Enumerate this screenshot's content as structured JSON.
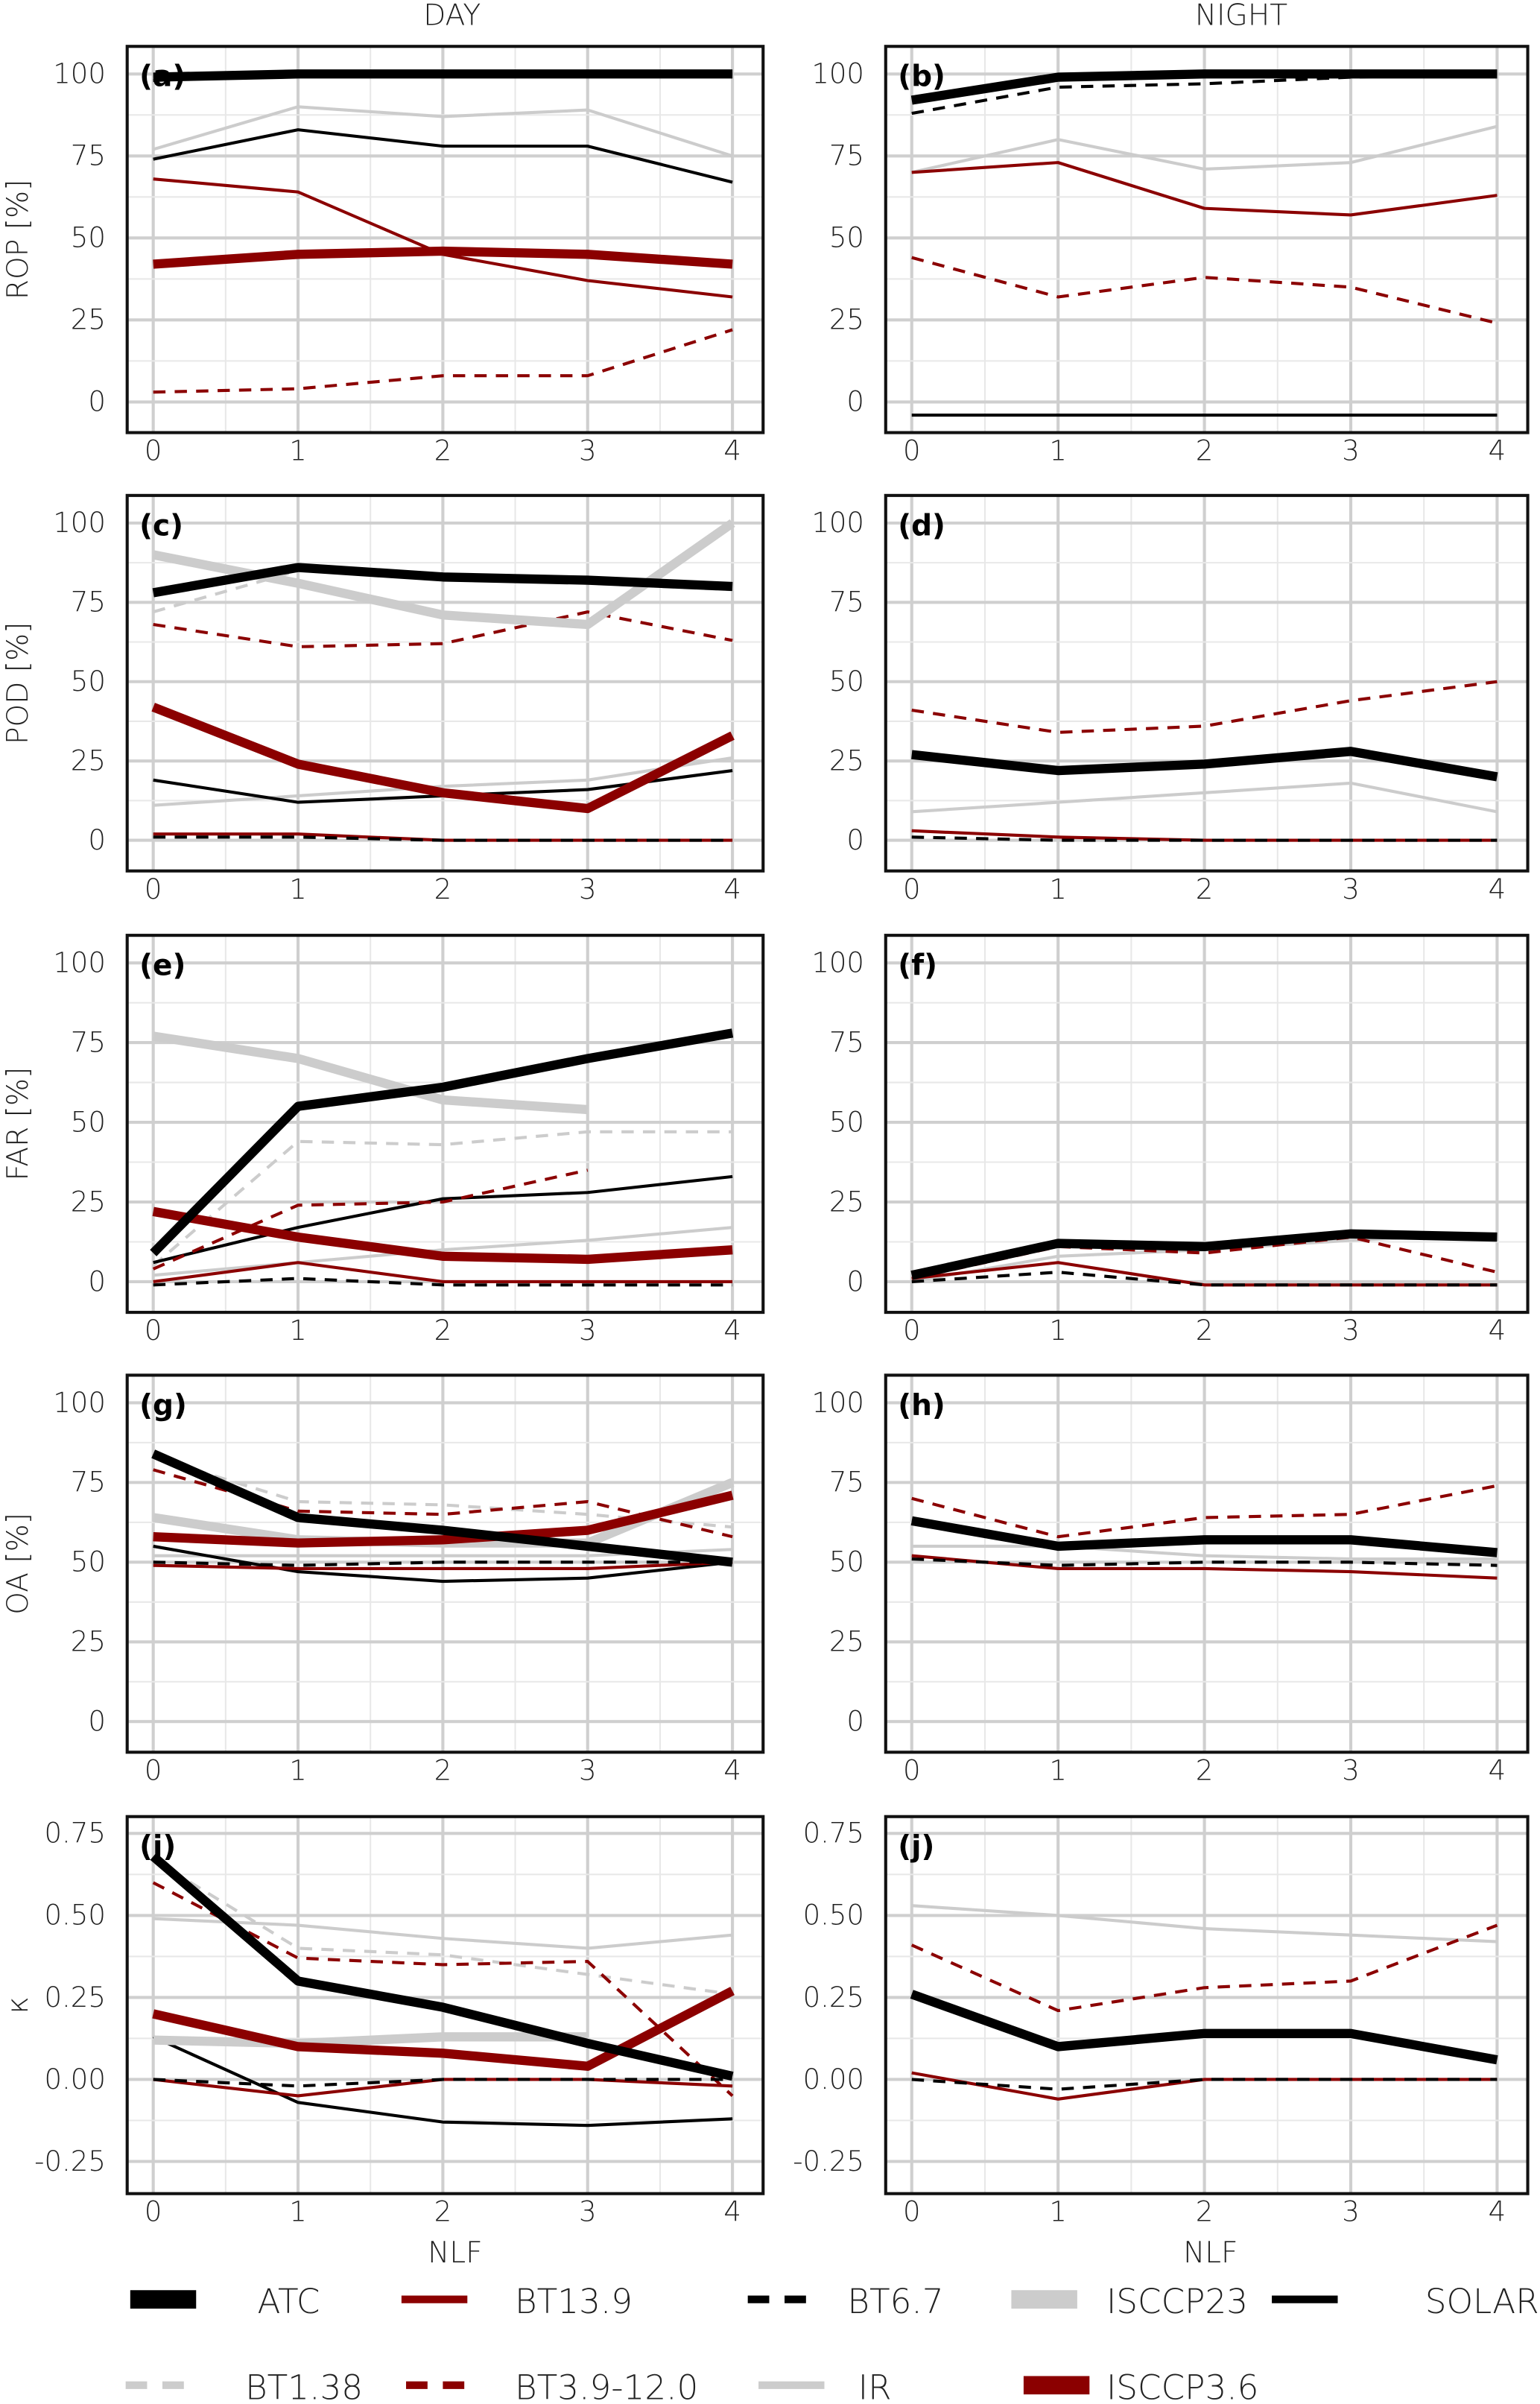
{
  "figure": {
    "column_titles": [
      "DAY",
      "NIGHT"
    ],
    "xlabel": "NLF"
  },
  "series_colors": {
    "ATC": "#000000",
    "BT13.9": "#8b0000",
    "BT6.7": "#000000",
    "ISCCP23": "#cccccc",
    "SOLAR": "#000000",
    "BT1.38": "#cccccc",
    "BT3.9-12.0": "#8b0000",
    "IR": "#cccccc",
    "ISCCP3.6": "#8b0000"
  },
  "legend": {
    "placement": "bottom",
    "entries": [
      "ATC",
      "BT13.9",
      "BT6.7",
      "ISCCP23",
      "SOLAR",
      "BT1.38",
      "BT3.9-12.0",
      "IR",
      "ISCCP3.6"
    ]
  },
  "chart_data": [
    {
      "type": "line",
      "label": "(a)",
      "column": "DAY",
      "ylabel": "ROP [%]",
      "x": [
        0,
        1,
        2,
        3,
        4
      ],
      "xticks": [
        "0",
        "1",
        "2",
        "3",
        "4"
      ],
      "ylim": [
        0,
        100
      ],
      "yticks": [
        "0",
        "25",
        "50",
        "75",
        "100"
      ],
      "grid": true,
      "series": [
        {
          "name": "IR",
          "values": [
            77,
            90,
            87,
            89,
            75
          ]
        },
        {
          "name": "SOLAR",
          "values": [
            74,
            83,
            78,
            78,
            67
          ]
        },
        {
          "name": "BT13.9",
          "values": [
            68,
            64,
            45,
            37,
            32
          ]
        },
        {
          "name": "BT3.9-12.0",
          "values": [
            3,
            4,
            8,
            8,
            22
          ]
        },
        {
          "name": "ISCCP3.6",
          "values": [
            42,
            45,
            46,
            45,
            42
          ]
        },
        {
          "name": "BT6.7",
          "values": [
            98,
            100,
            100,
            100,
            100
          ]
        },
        {
          "name": "ATC",
          "values": [
            99,
            100,
            100,
            100,
            100
          ]
        }
      ]
    },
    {
      "type": "line",
      "label": "(b)",
      "column": "NIGHT",
      "ylabel": "",
      "x": [
        0,
        1,
        2,
        3,
        4
      ],
      "xticks": [
        "0",
        "1",
        "2",
        "3",
        "4"
      ],
      "ylim": [
        0,
        100
      ],
      "yticks": [
        "0",
        "25",
        "50",
        "75",
        "100"
      ],
      "grid": true,
      "series": [
        {
          "name": "IR",
          "values": [
            70,
            80,
            71,
            73,
            84
          ]
        },
        {
          "name": "SOLAR",
          "values": [
            -4,
            -4,
            -4,
            -4,
            -4
          ]
        },
        {
          "name": "BT13.9",
          "values": [
            70,
            73,
            59,
            57,
            63
          ]
        },
        {
          "name": "BT3.9-12.0",
          "values": [
            44,
            32,
            38,
            35,
            24
          ]
        },
        {
          "name": "BT6.7",
          "values": [
            88,
            96,
            97,
            99,
            100
          ]
        },
        {
          "name": "ATC",
          "values": [
            92,
            99,
            100,
            100,
            100
          ]
        }
      ]
    },
    {
      "type": "line",
      "label": "(c)",
      "column": "DAY",
      "ylabel": "POD [%]",
      "x": [
        0,
        1,
        2,
        3,
        4
      ],
      "xticks": [
        "0",
        "1",
        "2",
        "3",
        "4"
      ],
      "ylim": [
        0,
        100
      ],
      "yticks": [
        "0",
        "25",
        "50",
        "75",
        "100"
      ],
      "grid": true,
      "series": [
        {
          "name": "IR",
          "values": [
            11,
            14,
            17,
            19,
            26
          ]
        },
        {
          "name": "BT1.38",
          "values": [
            72,
            85,
            83,
            81,
            79
          ]
        },
        {
          "name": "SOLAR",
          "values": [
            19,
            12,
            14,
            16,
            22
          ]
        },
        {
          "name": "BT3.9-12.0",
          "values": [
            68,
            61,
            62,
            72,
            63
          ]
        },
        {
          "name": "BT13.9",
          "values": [
            2,
            2,
            0,
            0,
            0
          ]
        },
        {
          "name": "BT6.7",
          "values": [
            1,
            1,
            0,
            0,
            0
          ]
        },
        {
          "name": "ISCCP23",
          "values": [
            90,
            81,
            71,
            68,
            100
          ]
        },
        {
          "name": "ISCCP3.6",
          "values": [
            42,
            24,
            15,
            10,
            33
          ]
        },
        {
          "name": "ATC",
          "values": [
            78,
            86,
            83,
            82,
            80
          ]
        }
      ]
    },
    {
      "type": "line",
      "label": "(d)",
      "column": "NIGHT",
      "ylabel": "",
      "x": [
        0,
        1,
        2,
        3,
        4
      ],
      "xticks": [
        "0",
        "1",
        "2",
        "3",
        "4"
      ],
      "ylim": [
        0,
        100
      ],
      "yticks": [
        "0",
        "25",
        "50",
        "75",
        "100"
      ],
      "grid": true,
      "series": [
        {
          "name": "IR",
          "values": [
            9,
            12,
            15,
            18,
            9
          ]
        },
        {
          "name": "BT3.9-12.0",
          "values": [
            41,
            34,
            36,
            44,
            50
          ]
        },
        {
          "name": "BT13.9",
          "values": [
            3,
            1,
            0,
            0,
            0
          ]
        },
        {
          "name": "BT6.7",
          "values": [
            1,
            0,
            0,
            0,
            0
          ]
        },
        {
          "name": "ATC",
          "values": [
            27,
            22,
            24,
            28,
            20
          ]
        }
      ]
    },
    {
      "type": "line",
      "label": "(e)",
      "column": "DAY",
      "ylabel": "FAR [%]",
      "x": [
        0,
        1,
        2,
        3,
        4
      ],
      "xticks": [
        "0",
        "1",
        "2",
        "3",
        "4"
      ],
      "ylim": [
        0,
        100
      ],
      "yticks": [
        "0",
        "25",
        "50",
        "75",
        "100"
      ],
      "grid": true,
      "series": [
        {
          "name": "IR",
          "values": [
            2,
            6,
            10,
            13,
            17
          ]
        },
        {
          "name": "BT1.38",
          "values": [
            5,
            44,
            43,
            47,
            47
          ]
        },
        {
          "name": "SOLAR",
          "values": [
            6,
            17,
            26,
            28,
            33
          ]
        },
        {
          "name": "BT3.9-12.0",
          "values": [
            4,
            24,
            25,
            35,
            null
          ]
        },
        {
          "name": "BT13.9",
          "values": [
            0,
            6,
            0,
            0,
            0
          ]
        },
        {
          "name": "BT6.7",
          "values": [
            -1,
            1,
            -1,
            -1,
            -1
          ]
        },
        {
          "name": "ISCCP23",
          "values": [
            77,
            70,
            57,
            54,
            null
          ]
        },
        {
          "name": "ISCCP3.6",
          "values": [
            22,
            14,
            8,
            7,
            10
          ]
        },
        {
          "name": "ATC",
          "values": [
            9,
            55,
            61,
            70,
            78
          ]
        }
      ]
    },
    {
      "type": "line",
      "label": "(f)",
      "column": "NIGHT",
      "ylabel": "",
      "x": [
        0,
        1,
        2,
        3,
        4
      ],
      "xticks": [
        "0",
        "1",
        "2",
        "3",
        "4"
      ],
      "ylim": [
        0,
        100
      ],
      "yticks": [
        "0",
        "25",
        "50",
        "75",
        "100"
      ],
      "grid": true,
      "series": [
        {
          "name": "IR",
          "values": [
            0,
            8,
            10,
            13,
            15
          ]
        },
        {
          "name": "BT3.9-12.0",
          "values": [
            1,
            11,
            9,
            14,
            3
          ]
        },
        {
          "name": "BT13.9",
          "values": [
            1,
            6,
            -1,
            -1,
            -1
          ]
        },
        {
          "name": "BT6.7",
          "values": [
            0,
            3,
            -1,
            -1,
            -1
          ]
        },
        {
          "name": "ATC",
          "values": [
            2,
            12,
            11,
            15,
            14
          ]
        }
      ]
    },
    {
      "type": "line",
      "label": "(g)",
      "column": "DAY",
      "ylabel": "OA [%]",
      "x": [
        0,
        1,
        2,
        3,
        4
      ],
      "xticks": [
        "0",
        "1",
        "2",
        "3",
        "4"
      ],
      "ylim": [
        0,
        100
      ],
      "yticks": [
        "0",
        "25",
        "50",
        "75",
        "100"
      ],
      "grid": true,
      "series": [
        {
          "name": "IR",
          "values": [
            52,
            52,
            52,
            52,
            54
          ]
        },
        {
          "name": "BT1.38",
          "values": [
            83,
            69,
            68,
            65,
            61
          ]
        },
        {
          "name": "SOLAR",
          "values": [
            55,
            47,
            44,
            45,
            50
          ]
        },
        {
          "name": "BT3.9-12.0",
          "values": [
            79,
            66,
            65,
            69,
            58
          ]
        },
        {
          "name": "BT13.9",
          "values": [
            49,
            48,
            48,
            48,
            50
          ]
        },
        {
          "name": "BT6.7",
          "values": [
            50,
            49,
            50,
            50,
            50
          ]
        },
        {
          "name": "ISCCP23",
          "values": [
            64,
            57,
            56,
            56,
            75
          ]
        },
        {
          "name": "ISCCP3.6",
          "values": [
            58,
            56,
            57,
            60,
            71
          ]
        },
        {
          "name": "ATC",
          "values": [
            84,
            64,
            60,
            55,
            50
          ]
        }
      ]
    },
    {
      "type": "line",
      "label": "(h)",
      "column": "NIGHT",
      "ylabel": "",
      "x": [
        0,
        1,
        2,
        3,
        4
      ],
      "xticks": [
        "0",
        "1",
        "2",
        "3",
        "4"
      ],
      "ylim": [
        0,
        100
      ],
      "yticks": [
        "0",
        "25",
        "50",
        "75",
        "100"
      ],
      "grid": true,
      "series": [
        {
          "name": "IR",
          "values": [
            55,
            55,
            52,
            51,
            51
          ]
        },
        {
          "name": "BT3.9-12.0",
          "values": [
            70,
            58,
            64,
            65,
            74
          ]
        },
        {
          "name": "BT13.9",
          "values": [
            52,
            48,
            48,
            47,
            45
          ]
        },
        {
          "name": "BT6.7",
          "values": [
            51,
            49,
            50,
            50,
            49
          ]
        },
        {
          "name": "ATC",
          "values": [
            63,
            55,
            57,
            57,
            53
          ]
        }
      ]
    },
    {
      "type": "line",
      "label": "(i)",
      "column": "DAY",
      "ylabel": "κ",
      "xlabel": "NLF",
      "x": [
        0,
        1,
        2,
        3,
        4
      ],
      "xticks": [
        "0",
        "1",
        "2",
        "3",
        "4"
      ],
      "ylim": [
        -0.25,
        0.75
      ],
      "yticks": [
        "-0.25",
        "0.00",
        "0.25",
        "0.50",
        "0.75"
      ],
      "grid": true,
      "series": [
        {
          "name": "IR",
          "values": [
            0.49,
            0.47,
            0.43,
            0.4,
            0.44
          ]
        },
        {
          "name": "BT1.38",
          "values": [
            0.67,
            0.4,
            0.38,
            0.32,
            0.26
          ]
        },
        {
          "name": "SOLAR",
          "values": [
            0.13,
            -0.07,
            -0.13,
            -0.14,
            -0.12
          ]
        },
        {
          "name": "BT3.9-12.0",
          "values": [
            0.6,
            0.37,
            0.35,
            0.36,
            -0.05
          ]
        },
        {
          "name": "BT13.9",
          "values": [
            0.0,
            -0.05,
            0.0,
            0.0,
            -0.02
          ]
        },
        {
          "name": "BT6.7",
          "values": [
            0.0,
            -0.02,
            0.0,
            0.0,
            0.0
          ]
        },
        {
          "name": "ISCCP23",
          "values": [
            0.12,
            0.11,
            0.13,
            0.13,
            null
          ]
        },
        {
          "name": "ISCCP3.6",
          "values": [
            0.2,
            0.1,
            0.08,
            0.04,
            0.27
          ]
        },
        {
          "name": "ATC",
          "values": [
            0.68,
            0.3,
            0.22,
            0.11,
            0.01
          ]
        }
      ]
    },
    {
      "type": "line",
      "label": "(j)",
      "column": "NIGHT",
      "ylabel": "",
      "xlabel": "NLF",
      "x": [
        0,
        1,
        2,
        3,
        4
      ],
      "xticks": [
        "0",
        "1",
        "2",
        "3",
        "4"
      ],
      "ylim": [
        -0.25,
        0.75
      ],
      "yticks": [
        "-0.25",
        "0.00",
        "0.25",
        "0.50",
        "0.75"
      ],
      "grid": true,
      "series": [
        {
          "name": "IR",
          "values": [
            0.53,
            0.5,
            0.46,
            0.44,
            0.42
          ]
        },
        {
          "name": "BT3.9-12.0",
          "values": [
            0.41,
            0.21,
            0.28,
            0.3,
            0.47
          ]
        },
        {
          "name": "BT13.9",
          "values": [
            0.02,
            -0.06,
            0.0,
            0.0,
            0.0
          ]
        },
        {
          "name": "BT6.7",
          "values": [
            0.0,
            -0.03,
            0.0,
            0.0,
            0.0
          ]
        },
        {
          "name": "ATC",
          "values": [
            0.26,
            0.1,
            0.14,
            0.14,
            0.06
          ]
        }
      ]
    }
  ]
}
